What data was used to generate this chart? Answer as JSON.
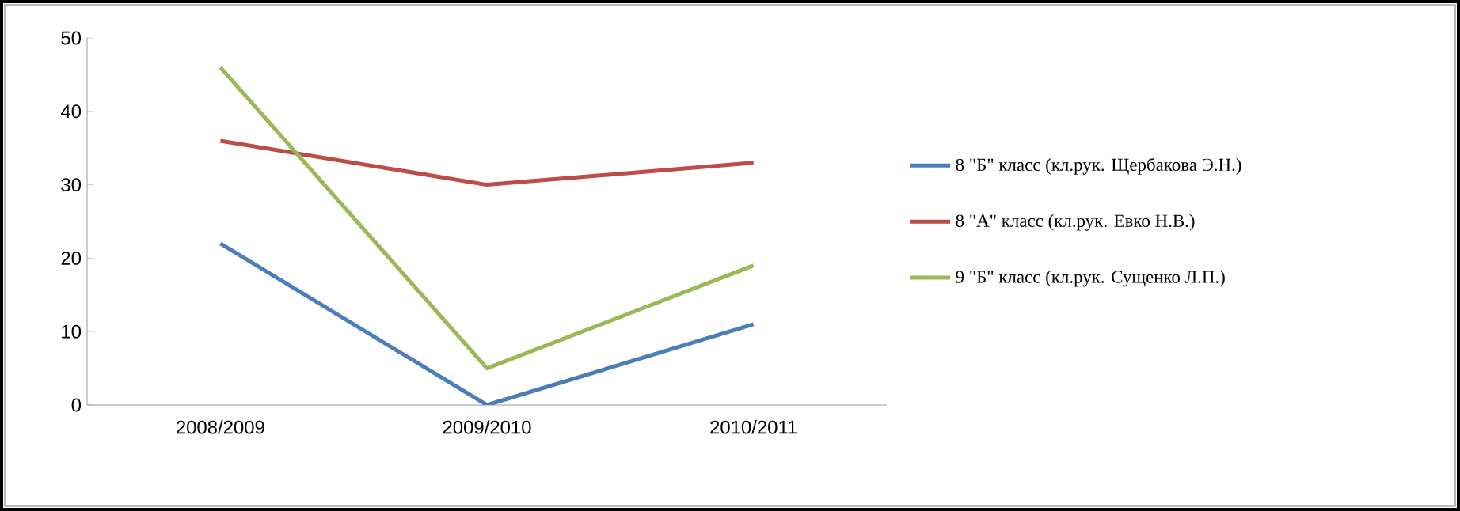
{
  "chart_data": {
    "type": "line",
    "categories": [
      "2008/2009",
      "2009/2010",
      "2010/2011"
    ],
    "series": [
      {
        "name": "8 \"Б\" класс (кл.рук. Щербакова Э.Н.)",
        "color": "#4a7ebb",
        "values": [
          22,
          0,
          11
        ]
      },
      {
        "name": "8 \"А\" класс (кл.рук. Евко Н.В.)",
        "color": "#be4b48",
        "values": [
          36,
          30,
          33
        ]
      },
      {
        "name": "9 \"Б\" класс (кл.рук. Сущенко Л.П.)",
        "color": "#98b954",
        "values": [
          46,
          5,
          19
        ]
      }
    ],
    "ylim": [
      0,
      50
    ],
    "yticks": [
      0,
      10,
      20,
      30,
      40,
      50
    ],
    "grid": false,
    "legend": "right",
    "marker": "none",
    "line_style": "solid"
  }
}
